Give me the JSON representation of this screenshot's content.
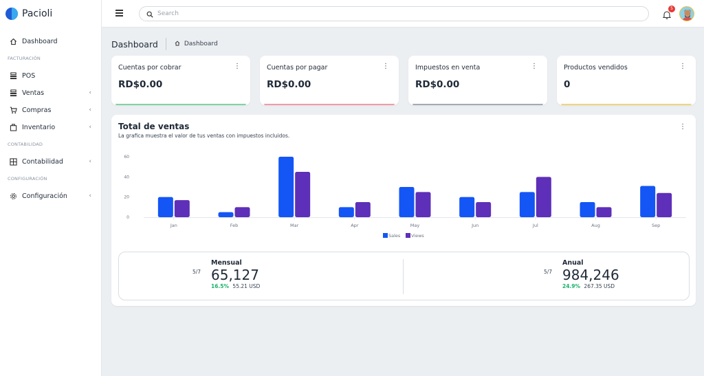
{
  "brand": {
    "name": "Pacioli"
  },
  "sidebar": {
    "items": [
      {
        "type": "item",
        "label": "Dashboard",
        "icon": "home-icon"
      },
      {
        "type": "section",
        "label": "FACTURACIÓN"
      },
      {
        "type": "item",
        "label": "POS",
        "icon": "register-icon"
      },
      {
        "type": "item",
        "label": "Ventas",
        "icon": "register-icon",
        "expandable": true
      },
      {
        "type": "item",
        "label": "Compras",
        "icon": "cart-icon",
        "expandable": true
      },
      {
        "type": "item",
        "label": "Inventario",
        "icon": "box-icon",
        "expandable": true
      },
      {
        "type": "section",
        "label": "CONTABILIDAD"
      },
      {
        "type": "item",
        "label": "Contabilidad",
        "icon": "ledger-icon",
        "expandable": true
      },
      {
        "type": "section",
        "label": "CONFIGURACIÓN"
      },
      {
        "type": "item",
        "label": "Configuración",
        "icon": "gear-icon",
        "expandable": true
      }
    ]
  },
  "topbar": {
    "search_placeholder": "Search",
    "notifications_count": "5"
  },
  "page": {
    "title": "Dashboard",
    "breadcrumb": "Dashboard"
  },
  "stats": [
    {
      "label": "Cuentas por cobrar",
      "value": "RD$0.00",
      "accent": "#7fd4a1"
    },
    {
      "label": "Cuentas por pagar",
      "value": "RD$0.00",
      "accent": "#f29aa8"
    },
    {
      "label": "Impuestos en venta",
      "value": "RD$0.00",
      "accent": "#a3abb5"
    },
    {
      "label": "Productos vendidos",
      "value": "0",
      "accent": "#f2d57a"
    }
  ],
  "sales": {
    "title": "Total de ventas",
    "subtitle": "La grafica muestra el valor de tus ventas con impuestos incluidos."
  },
  "chart_data": {
    "type": "bar",
    "categories": [
      "Jan",
      "Feb",
      "Mar",
      "Apr",
      "May",
      "Jun",
      "Jul",
      "Aug",
      "Sep"
    ],
    "series": [
      {
        "name": "Sales",
        "values": [
          20,
          5,
          60,
          10,
          30,
          20,
          25,
          15,
          31
        ],
        "color": "#1356f5"
      },
      {
        "name": "Views",
        "values": [
          17,
          10,
          45,
          15,
          25,
          15,
          40,
          10,
          24
        ],
        "color": "#5e2fb8"
      }
    ],
    "yticks": [
      0,
      20,
      40,
      60
    ],
    "ylim": [
      0,
      60
    ],
    "legend": "bottom-center",
    "grid": false
  },
  "summary": {
    "monthly": {
      "period": "Mensual",
      "date": "5/7",
      "value": "65,127",
      "pct": "16.5%",
      "usd": "55.21 USD"
    },
    "annual": {
      "period": "Anual",
      "date": "5/7",
      "value": "984,246",
      "pct": "24.9%",
      "usd": "267.35 USD"
    }
  },
  "colors": {
    "accent": "#1356f5",
    "secondary": "#5e2fb8",
    "positive": "#19b26b"
  }
}
